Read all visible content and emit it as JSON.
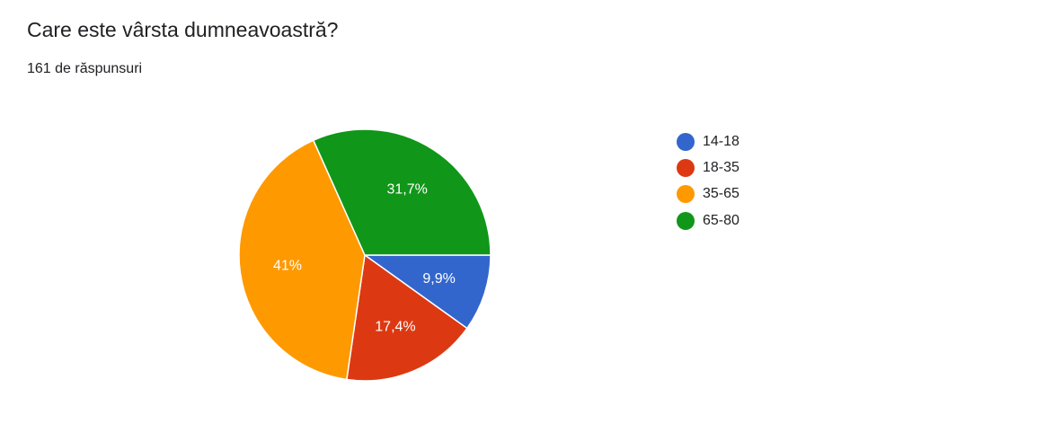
{
  "question": {
    "title": "Care este vârsta dumneavoastră?",
    "response_count": "161 de răspunsuri"
  },
  "chart_data": {
    "type": "pie",
    "categories": [
      "14-18",
      "18-35",
      "35-65",
      "65-80"
    ],
    "values": [
      9.9,
      17.4,
      41,
      31.7
    ],
    "labels": [
      "9,9%",
      "17,4%",
      "41%",
      "31,7%"
    ],
    "colors": [
      "#3366cc",
      "#dc3912",
      "#ff9900",
      "#109618"
    ],
    "legend_position": "right"
  }
}
